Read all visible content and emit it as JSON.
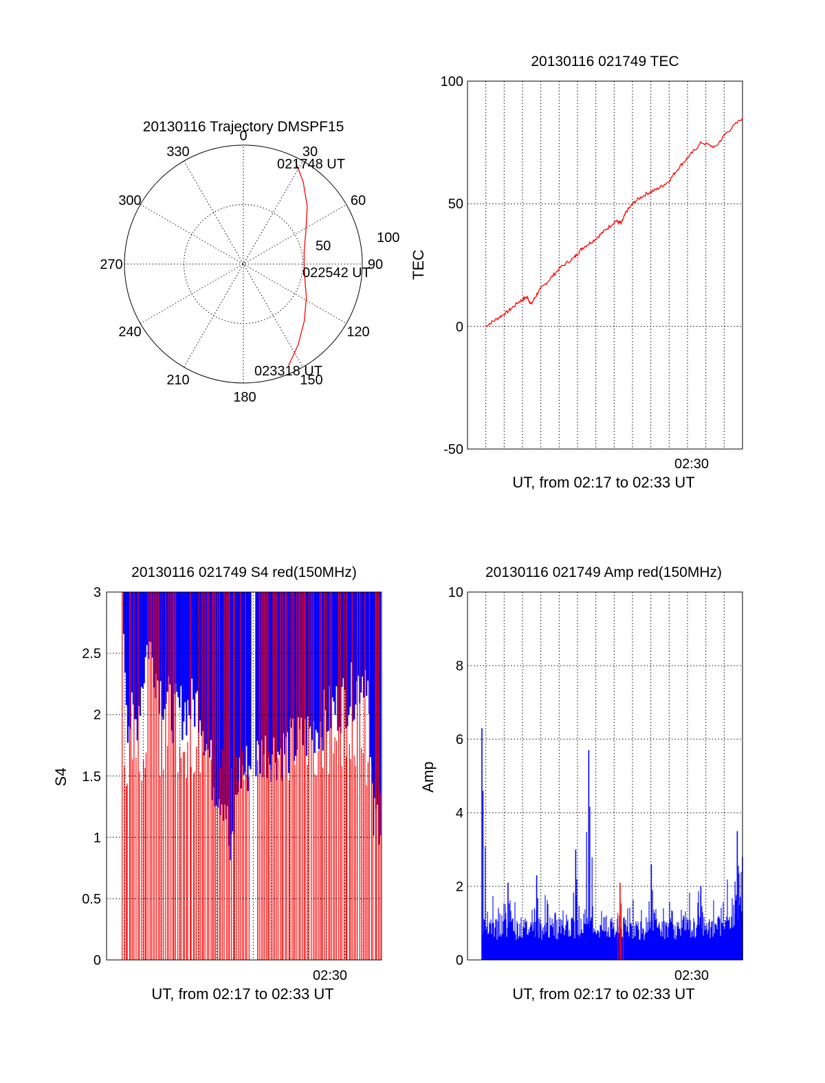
{
  "chart_data": [
    {
      "id": "trajectory",
      "type": "polar-trajectory",
      "title": "20130116 Trajectory DMSPF15",
      "angle_labels": [
        "0",
        "30",
        "60",
        "90",
        "120",
        "150",
        "180",
        "210",
        "240",
        "270",
        "300",
        "330"
      ],
      "radial_labels": [
        "50",
        "100"
      ],
      "radial_max": 100,
      "annotations": [
        {
          "text": "021748 UT",
          "az": 27,
          "el": 3
        },
        {
          "text": "022542 UT",
          "az": 90,
          "el": 44
        },
        {
          "text": "023318 UT",
          "az": 156,
          "el": 6
        }
      ],
      "track": {
        "color": "#ff0000",
        "points": [
          [
            27,
            3
          ],
          [
            36,
            13
          ],
          [
            48,
            25
          ],
          [
            63,
            37
          ],
          [
            78,
            43
          ],
          [
            90,
            44
          ],
          [
            104,
            42
          ],
          [
            118,
            36
          ],
          [
            133,
            27
          ],
          [
            146,
            16
          ],
          [
            156,
            6
          ]
        ]
      }
    },
    {
      "id": "tec",
      "type": "line",
      "title": "20130116 021749 TEC",
      "xlabel": "UT, from 02:17 to 02:33 UT",
      "ylabel": "TEC",
      "xtick_labels": [
        "02:30"
      ],
      "ytick_labels": [
        "-50",
        "0",
        "50",
        "100"
      ],
      "ylim": [
        -50,
        100
      ],
      "grid": true,
      "color": "#ff0000",
      "start_time": "02:17:49",
      "end_time": "02:33:18",
      "series": [
        {
          "points": [
            [
              "02:17:49",
              0
            ],
            [
              "02:18:30",
              3
            ],
            [
              "02:19:10",
              6
            ],
            [
              "02:19:50",
              10
            ],
            [
              "02:20:20",
              12
            ],
            [
              "02:20:35",
              9
            ],
            [
              "02:21:00",
              14
            ],
            [
              "02:21:40",
              19
            ],
            [
              "02:22:20",
              24
            ],
            [
              "02:23:10",
              28
            ],
            [
              "02:23:40",
              32
            ],
            [
              "02:24:20",
              35
            ],
            [
              "02:25:00",
              39
            ],
            [
              "02:25:40",
              43
            ],
            [
              "02:26:00",
              42
            ],
            [
              "02:26:20",
              47
            ],
            [
              "02:26:50",
              51
            ],
            [
              "02:27:30",
              54
            ],
            [
              "02:28:10",
              56
            ],
            [
              "02:28:50",
              59
            ],
            [
              "02:29:30",
              65
            ],
            [
              "02:30:10",
              70
            ],
            [
              "02:30:50",
              75
            ],
            [
              "02:31:40",
              73
            ],
            [
              "02:32:20",
              79
            ],
            [
              "02:33:18",
              85
            ]
          ]
        }
      ]
    },
    {
      "id": "s4",
      "type": "bar",
      "title": "20130116 021749 S4 red(150MHz)",
      "xlabel": "UT, from 02:17 to 02:33 UT",
      "ylabel": "S4",
      "xtick_labels": [
        "02:30"
      ],
      "ytick_labels": [
        "0",
        "0.5",
        "1",
        "1.5",
        "2",
        "2.5",
        "3"
      ],
      "ylim": [
        0,
        3
      ],
      "grid": true,
      "series_colors": [
        "#ff0000",
        "#0000ff"
      ],
      "start_time": "02:17:40",
      "end_time": "02:33:30",
      "profiles": {
        "red": [
          [
            0,
            1.5
          ],
          [
            0.05,
            1.5
          ],
          [
            0.15,
            1.6
          ],
          [
            0.3,
            1.65
          ],
          [
            0.5,
            1.55
          ],
          [
            0.7,
            1.6
          ],
          [
            0.85,
            1.7
          ],
          [
            1,
            1.5
          ]
        ],
        "blue": [
          [
            0,
            3
          ],
          [
            0.02,
            2.0
          ],
          [
            0.05,
            1.9
          ],
          [
            0.1,
            2.6
          ],
          [
            0.15,
            2.2
          ],
          [
            0.2,
            2.0
          ],
          [
            0.3,
            2.1
          ],
          [
            0.35,
            1.5
          ],
          [
            0.4,
            1.3
          ],
          [
            0.42,
            0.75
          ],
          [
            0.45,
            1.5
          ],
          [
            0.5,
            1.6
          ],
          [
            0.55,
            1.7
          ],
          [
            0.62,
            1.7
          ],
          [
            0.7,
            1.8
          ],
          [
            0.8,
            2.0
          ],
          [
            0.9,
            2.2
          ],
          [
            0.95,
            2.4
          ],
          [
            0.97,
            1.1
          ],
          [
            1,
            1.2
          ]
        ]
      }
    },
    {
      "id": "amp",
      "type": "bar",
      "title": "20130116 021749 Amp red(150MHz)",
      "xlabel": "UT, from 02:17 to 02:33 UT",
      "ylabel": "Amp",
      "xtick_labels": [
        "02:30"
      ],
      "ytick_labels": [
        "0",
        "2",
        "4",
        "6",
        "8",
        "10"
      ],
      "ylim": [
        0,
        10
      ],
      "grid": true,
      "series_colors": [
        "#0000ff",
        "#ff0000"
      ],
      "start_time": "02:17:49",
      "end_time": "02:33:18",
      "baseline": 0.9,
      "spikes": [
        {
          "t": 0.0,
          "v": 6.3
        },
        {
          "t": 0.1,
          "v": 2.1
        },
        {
          "t": 0.21,
          "v": 2.3
        },
        {
          "t": 0.36,
          "v": 3.0
        },
        {
          "t": 0.41,
          "v": 5.7
        },
        {
          "t": 0.53,
          "v": 2.1,
          "color": "#ff0000"
        },
        {
          "t": 0.65,
          "v": 2.6
        },
        {
          "t": 0.84,
          "v": 2.0
        },
        {
          "t": 0.98,
          "v": 3.5
        },
        {
          "t": 1.0,
          "v": 2.8
        }
      ]
    }
  ]
}
